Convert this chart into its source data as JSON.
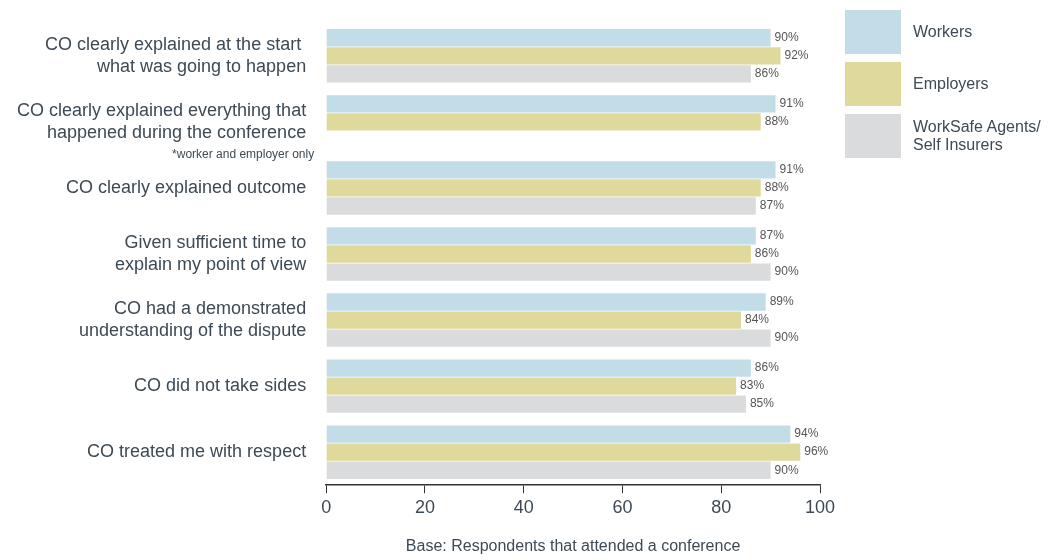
{
  "chart_data": {
    "type": "bar",
    "orientation": "horizontal",
    "categories": [
      "CO clearly explained at the start \nwhat was going to happen",
      "CO clearly explained everything that\nhappened during the conference",
      "CO clearly explained outcome",
      "Given sufficient time to\nexplain my point of view",
      "CO had a demonstrated\nunderstanding of the dispute",
      "CO did not take sides",
      "CO treated me with respect"
    ],
    "series": [
      {
        "name": "Workers",
        "color": "#c2dde8",
        "values": [
          90,
          91,
          91,
          87,
          89,
          86,
          94
        ],
        "value_labels": [
          "90%",
          "91%",
          "91%",
          "87%",
          "89%",
          "86%",
          "94%"
        ]
      },
      {
        "name": "Employers",
        "color": "#e0d99c",
        "values": [
          92,
          88,
          88,
          86,
          84,
          83,
          96
        ],
        "value_labels": [
          "92%",
          "88%",
          "88%",
          "86%",
          "84%",
          "83%",
          "96%"
        ]
      },
      {
        "name": "WorkSafe Agents/ Self Insurers",
        "color": "#d9dbdc",
        "values": [
          86,
          null,
          87,
          90,
          90,
          85,
          90
        ],
        "value_labels": [
          "86%",
          null,
          "87%",
          "90%",
          "90%",
          "85%",
          "90%"
        ]
      }
    ],
    "xlim": [
      0,
      100
    ],
    "xticks": [
      0,
      20,
      40,
      60,
      80,
      100
    ],
    "xlabel": "Base: Respondents that attended a conference",
    "annotations": [
      "*worker and employer only"
    ],
    "legend": "top right",
    "grid": false
  }
}
